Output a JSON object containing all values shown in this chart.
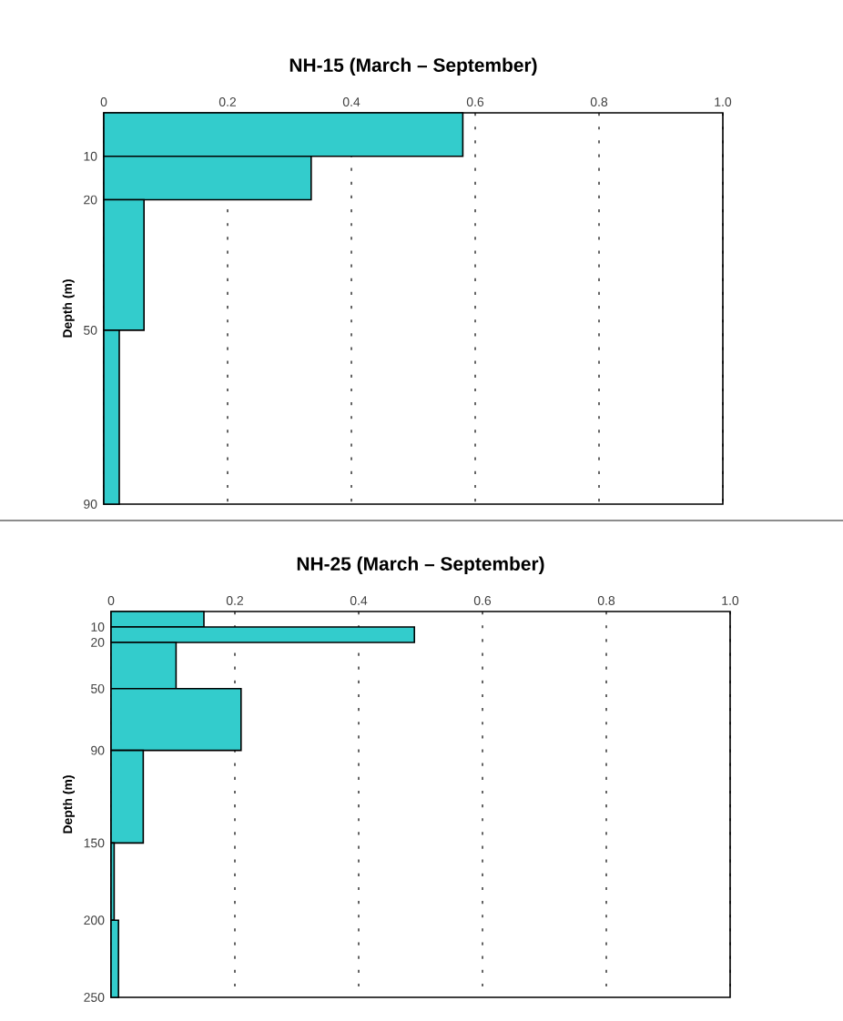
{
  "chart_data": [
    {
      "type": "histogram",
      "orientation": "horizontal",
      "title": "NH-15  (March – September)",
      "ylabel": "Depth (m)",
      "bins": [
        0,
        10,
        20,
        50,
        90
      ],
      "values": [
        0.58,
        0.335,
        0.065,
        0.025
      ],
      "color": "#33cccc",
      "xlim": [
        0,
        1
      ],
      "xticks": [
        0,
        0.2,
        0.4,
        0.6,
        0.8,
        {
          "value": 1,
          "label": "1.0"
        }
      ],
      "ylim": [
        90,
        0
      ],
      "yticks": [
        10,
        20,
        50,
        90
      ],
      "grid": "x"
    },
    {
      "type": "histogram",
      "orientation": "horizontal",
      "title": "NH-25  (March – September)",
      "ylabel": "Depth (m)",
      "bins": [
        0,
        10,
        20,
        50,
        90,
        150,
        200,
        250
      ],
      "values": [
        0.15,
        0.49,
        0.105,
        0.21,
        0.052,
        0.005,
        0.012
      ],
      "color": "#33cccc",
      "xlim": [
        0,
        1
      ],
      "xticks": [
        0,
        0.2,
        0.4,
        0.6,
        0.8,
        {
          "value": 1,
          "label": "1.0"
        }
      ],
      "ylim": [
        250,
        0
      ],
      "yticks": [
        10,
        20,
        50,
        90,
        150,
        200,
        250
      ],
      "grid": "x"
    }
  ]
}
